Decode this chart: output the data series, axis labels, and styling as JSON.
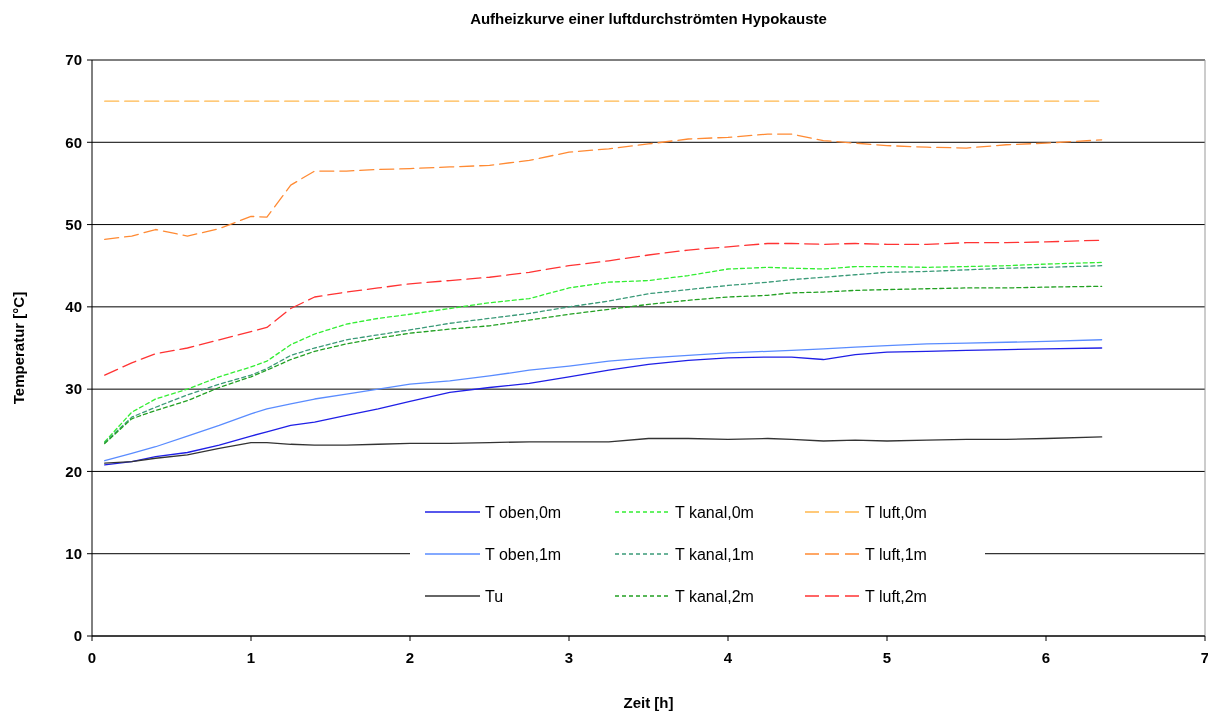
{
  "chart_data": {
    "type": "line",
    "title": "Aufheizkurve einer luftdurchströmten Hypokauste",
    "xlabel": "Zeit [h]",
    "ylabel": "Temperatur [°C]",
    "x": [
      0.08,
      0.25,
      0.4,
      0.6,
      0.8,
      1.0,
      1.1,
      1.25,
      1.4,
      1.6,
      1.8,
      2.0,
      2.25,
      2.5,
      2.75,
      3.0,
      3.25,
      3.5,
      3.75,
      4.0,
      4.25,
      4.4,
      4.6,
      4.8,
      5.0,
      5.25,
      5.5,
      5.75,
      6.0,
      6.35
    ],
    "xlim": [
      0,
      7
    ],
    "xticks": [
      0,
      1,
      2,
      3,
      4,
      5,
      6,
      7
    ],
    "ylim": [
      0,
      70
    ],
    "yticks": [
      0,
      10,
      20,
      30,
      40,
      50,
      60,
      70
    ],
    "grid": "y",
    "legend": "bottom",
    "marker": "none",
    "series": [
      {
        "name": "T oben,0m",
        "color": "#1f1fe6",
        "line_style": "solid",
        "values": [
          20.8,
          21.2,
          21.8,
          22.3,
          23.2,
          24.3,
          24.8,
          25.6,
          26.0,
          26.8,
          27.6,
          28.5,
          29.6,
          30.2,
          30.7,
          31.5,
          32.3,
          33.0,
          33.5,
          33.8,
          33.9,
          33.9,
          33.6,
          34.2,
          34.5,
          34.6,
          34.7,
          34.8,
          34.9,
          35.0
        ]
      },
      {
        "name": "T oben,1m",
        "color": "#5a8cff",
        "line_style": "solid",
        "values": [
          21.3,
          22.2,
          23.0,
          24.3,
          25.6,
          27.0,
          27.6,
          28.2,
          28.8,
          29.4,
          30.0,
          30.6,
          31.0,
          31.6,
          32.3,
          32.8,
          33.4,
          33.8,
          34.1,
          34.4,
          34.6,
          34.7,
          34.9,
          35.1,
          35.3,
          35.5,
          35.6,
          35.7,
          35.8,
          36.0
        ]
      },
      {
        "name": "Tu",
        "color": "#333333",
        "line_style": "solid",
        "values": [
          21.0,
          21.2,
          21.6,
          22.0,
          22.8,
          23.5,
          23.5,
          23.3,
          23.2,
          23.2,
          23.3,
          23.4,
          23.4,
          23.5,
          23.6,
          23.6,
          23.6,
          24.0,
          24.0,
          23.9,
          24.0,
          23.9,
          23.7,
          23.8,
          23.7,
          23.8,
          23.9,
          23.9,
          24.0,
          24.2
        ]
      },
      {
        "name": "T kanal,0m",
        "color": "#33ee33",
        "line_style": "dotted",
        "values": [
          23.6,
          27.2,
          28.8,
          30.0,
          31.5,
          32.7,
          33.4,
          35.4,
          36.7,
          37.9,
          38.6,
          39.1,
          39.8,
          40.5,
          41.0,
          42.3,
          43.0,
          43.2,
          43.8,
          44.6,
          44.8,
          44.7,
          44.6,
          44.9,
          44.9,
          44.8,
          44.9,
          45.0,
          45.2,
          45.4
        ]
      },
      {
        "name": "T kanal,1m",
        "color": "#3a9a78",
        "line_style": "dotted",
        "values": [
          23.5,
          26.6,
          27.8,
          29.3,
          30.6,
          31.7,
          32.5,
          34.1,
          35.0,
          36.0,
          36.6,
          37.2,
          38.0,
          38.6,
          39.2,
          40.0,
          40.7,
          41.6,
          42.1,
          42.6,
          43.0,
          43.3,
          43.6,
          43.9,
          44.2,
          44.3,
          44.5,
          44.7,
          44.8,
          45.0
        ]
      },
      {
        "name": "T kanal,2m",
        "color": "#22a022",
        "line_style": "dotted",
        "values": [
          23.4,
          26.4,
          27.4,
          28.6,
          30.2,
          31.5,
          32.3,
          33.6,
          34.6,
          35.5,
          36.2,
          36.8,
          37.3,
          37.7,
          38.4,
          39.1,
          39.7,
          40.3,
          40.8,
          41.2,
          41.4,
          41.7,
          41.8,
          42.0,
          42.1,
          42.2,
          42.3,
          42.3,
          42.4,
          42.5
        ]
      },
      {
        "name": "T luft,0m",
        "color": "#ffb84d",
        "line_style": "dashed",
        "values": [
          65,
          65,
          65,
          65,
          65,
          65,
          65,
          65,
          65,
          65,
          65,
          65,
          65,
          65,
          65,
          65,
          65,
          65,
          65,
          65,
          65,
          65,
          65,
          65,
          65,
          65,
          65,
          65,
          65,
          65
        ]
      },
      {
        "name": "T luft,1m",
        "color": "#ff8a33",
        "line_style": "dashed",
        "values": [
          48.2,
          48.6,
          49.4,
          48.6,
          49.5,
          51.0,
          50.9,
          54.8,
          56.5,
          56.5,
          56.7,
          56.8,
          57.0,
          57.2,
          57.8,
          58.8,
          59.2,
          59.8,
          60.4,
          60.6,
          61.0,
          61.0,
          60.2,
          59.9,
          59.6,
          59.4,
          59.3,
          59.7,
          59.9,
          60.3
        ]
      },
      {
        "name": "T luft,2m",
        "color": "#ff3333",
        "line_style": "dashed",
        "values": [
          31.7,
          33.2,
          34.3,
          35.0,
          36.0,
          37.0,
          37.5,
          39.8,
          41.2,
          41.8,
          42.3,
          42.8,
          43.2,
          43.6,
          44.2,
          45.0,
          45.6,
          46.3,
          46.9,
          47.3,
          47.7,
          47.7,
          47.6,
          47.7,
          47.6,
          47.6,
          47.8,
          47.8,
          47.9,
          48.1
        ]
      }
    ]
  }
}
